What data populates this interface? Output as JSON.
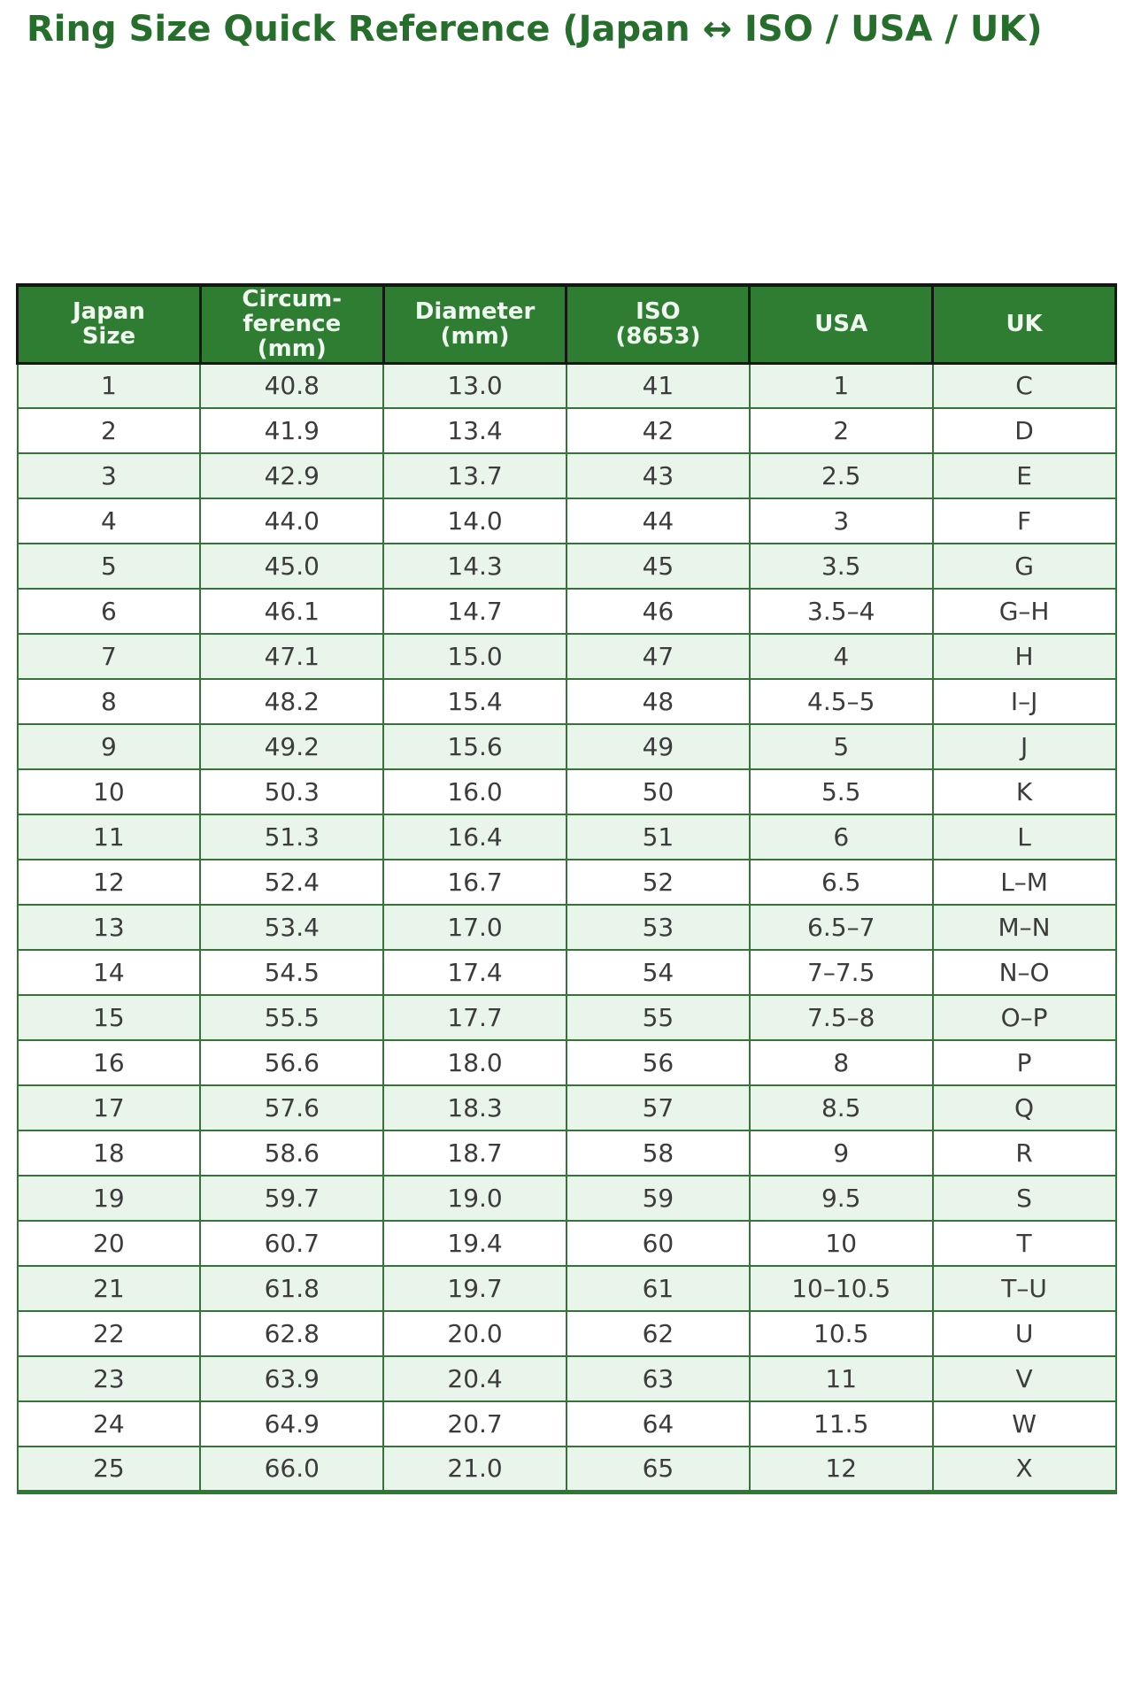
{
  "title": "Ring Size Quick Reference (Japan ↔ ISO / USA / UK)",
  "colors": {
    "title": "#266e2c",
    "header_background": "#2e7d32",
    "header_text": "#f1f8f1",
    "header_border": "#161616",
    "body_border": "#337537",
    "row_stripe": "#e9f5ea",
    "row_plain": "#fefffe",
    "body_text": "#3c3c3c",
    "bottom_border": "#2c7a31"
  },
  "table": {
    "columns": [
      "Japan\nSize",
      "Circum-\nference\n(mm)",
      "Diameter\n(mm)",
      "ISO\n(8653)",
      "USA",
      "UK"
    ],
    "column_keys": [
      "japan-size",
      "circumference-mm",
      "diameter-mm",
      "iso-8653",
      "usa",
      "uk"
    ],
    "rows": [
      [
        "1",
        "40.8",
        "13.0",
        "41",
        "1",
        "C"
      ],
      [
        "2",
        "41.9",
        "13.4",
        "42",
        "2",
        "D"
      ],
      [
        "3",
        "42.9",
        "13.7",
        "43",
        "2.5",
        "E"
      ],
      [
        "4",
        "44.0",
        "14.0",
        "44",
        "3",
        "F"
      ],
      [
        "5",
        "45.0",
        "14.3",
        "45",
        "3.5",
        "G"
      ],
      [
        "6",
        "46.1",
        "14.7",
        "46",
        "3.5–4",
        "G–H"
      ],
      [
        "7",
        "47.1",
        "15.0",
        "47",
        "4",
        "H"
      ],
      [
        "8",
        "48.2",
        "15.4",
        "48",
        "4.5–5",
        "I–J"
      ],
      [
        "9",
        "49.2",
        "15.6",
        "49",
        "5",
        "J"
      ],
      [
        "10",
        "50.3",
        "16.0",
        "50",
        "5.5",
        "K"
      ],
      [
        "11",
        "51.3",
        "16.4",
        "51",
        "6",
        "L"
      ],
      [
        "12",
        "52.4",
        "16.7",
        "52",
        "6.5",
        "L–M"
      ],
      [
        "13",
        "53.4",
        "17.0",
        "53",
        "6.5–7",
        "M–N"
      ],
      [
        "14",
        "54.5",
        "17.4",
        "54",
        "7–7.5",
        "N–O"
      ],
      [
        "15",
        "55.5",
        "17.7",
        "55",
        "7.5–8",
        "O–P"
      ],
      [
        "16",
        "56.6",
        "18.0",
        "56",
        "8",
        "P"
      ],
      [
        "17",
        "57.6",
        "18.3",
        "57",
        "8.5",
        "Q"
      ],
      [
        "18",
        "58.6",
        "18.7",
        "58",
        "9",
        "R"
      ],
      [
        "19",
        "59.7",
        "19.0",
        "59",
        "9.5",
        "S"
      ],
      [
        "20",
        "60.7",
        "19.4",
        "60",
        "10",
        "T"
      ],
      [
        "21",
        "61.8",
        "19.7",
        "61",
        "10–10.5",
        "T–U"
      ],
      [
        "22",
        "62.8",
        "20.0",
        "62",
        "10.5",
        "U"
      ],
      [
        "23",
        "63.9",
        "20.4",
        "63",
        "11",
        "V"
      ],
      [
        "24",
        "64.9",
        "20.7",
        "64",
        "11.5",
        "W"
      ],
      [
        "25",
        "66.0",
        "21.0",
        "65",
        "12",
        "X"
      ]
    ]
  }
}
